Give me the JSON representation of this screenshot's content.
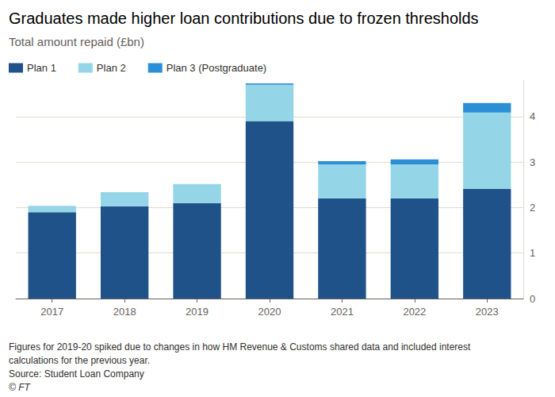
{
  "chart_data": {
    "type": "bar",
    "title": "Graduates made higher loan contributions due to frozen thresholds",
    "subtitle": "Total amount repaid (£bn)",
    "categories": [
      "2017",
      "2018",
      "2019",
      "2020",
      "2021",
      "2022",
      "2023"
    ],
    "series": [
      {
        "name": "Plan 1",
        "color": "#1f5289",
        "values": [
          1.9,
          2.03,
          2.1,
          3.9,
          2.2,
          2.2,
          2.41
        ]
      },
      {
        "name": "Plan 2",
        "color": "#95d5e8",
        "values": [
          0.14,
          0.31,
          0.42,
          0.8,
          0.75,
          0.75,
          1.68
        ]
      },
      {
        "name": "Plan 3 (Postgraduate)",
        "color": "#2a8fd6",
        "values": [
          0,
          0,
          0,
          0.03,
          0.07,
          0.11,
          0.21
        ]
      }
    ],
    "stacked": true,
    "ylim": [
      0,
      4.8
    ],
    "yticks": [
      0,
      1,
      2,
      3,
      4
    ],
    "grid": true,
    "legend": "top-left",
    "data_labels": false,
    "notes": [
      "Figures for 2019-20 spiked due to changes in how HM Revenue & Customs shared data and included interest",
      "calculations for the previous year."
    ],
    "source": "Source: Student Loan Company",
    "credit": "© FT"
  }
}
